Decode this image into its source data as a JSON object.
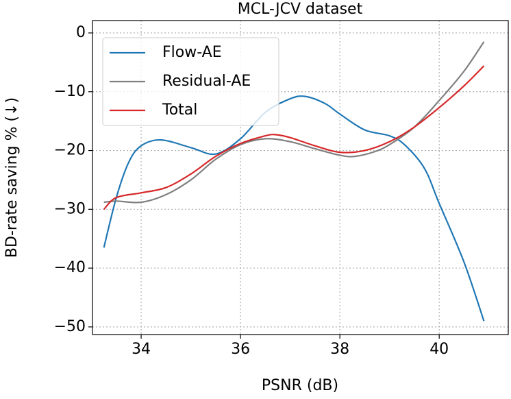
{
  "chart_data": {
    "type": "line",
    "title": "MCL-JCV dataset",
    "x_label": "PSNR (dB)",
    "y_label": "BD-rate saving % (↓)",
    "xlim": [
      33.02,
      41.39
    ],
    "ylim": [
      -51.3,
      2.1
    ],
    "xticks": [
      34,
      36,
      38,
      40
    ],
    "yticks": [
      0,
      {
        "value": -10,
        "label": "−10"
      },
      {
        "value": -20,
        "label": "−20"
      },
      {
        "value": -30,
        "label": "−30"
      },
      {
        "value": -40,
        "label": "−40"
      },
      {
        "value": -50,
        "label": "−50"
      }
    ],
    "grid": true,
    "legend": "upper left",
    "series": [
      {
        "name": "Flow-AE",
        "color": "#1f77b4",
        "x": [
          33.25,
          33.5,
          33.75,
          34,
          34.4,
          35,
          35.5,
          36,
          36.5,
          37,
          37.3,
          37.7,
          38,
          38.5,
          39,
          39.3,
          39.7,
          40,
          40.5,
          40.9
        ],
        "values": [
          -36.5,
          -28,
          -22,
          -19.2,
          -18.2,
          -19.5,
          -20.6,
          -18,
          -13.5,
          -11.2,
          -10.8,
          -12,
          -13.8,
          -16.5,
          -17.5,
          -19,
          -23,
          -29,
          -39,
          -49
        ]
      },
      {
        "name": "Residual-AE",
        "color": "#7f7f7f",
        "x": [
          33.25,
          33.5,
          34,
          34.5,
          35,
          35.5,
          36,
          36.5,
          37,
          37.5,
          38,
          38.3,
          38.7,
          39,
          39.5,
          40,
          40.5,
          40.9
        ],
        "values": [
          -28.8,
          -28.6,
          -28.8,
          -27.5,
          -25,
          -21.5,
          -19,
          -18,
          -18.5,
          -19.7,
          -20.8,
          -21,
          -20.2,
          -19,
          -16,
          -11.5,
          -6.5,
          -1.5
        ]
      },
      {
        "name": "Total",
        "color": "#d62728",
        "x": [
          33.25,
          33.5,
          34,
          34.5,
          35,
          35.5,
          36,
          36.5,
          36.7,
          37,
          37.5,
          38,
          38.5,
          39,
          39.5,
          40,
          40.5,
          40.9
        ],
        "values": [
          -30,
          -28,
          -27.2,
          -26.3,
          -24,
          -21,
          -18.8,
          -17.5,
          -17.3,
          -17.8,
          -19.2,
          -20.3,
          -20,
          -18.5,
          -16,
          -12.7,
          -9,
          -5.6
        ]
      }
    ]
  }
}
